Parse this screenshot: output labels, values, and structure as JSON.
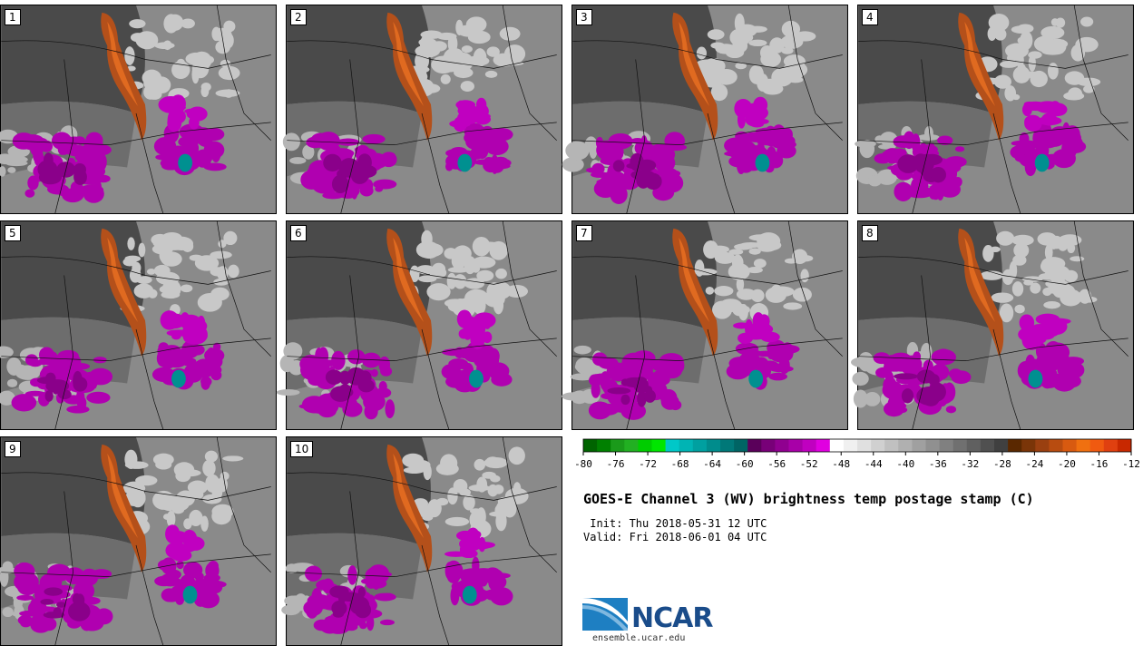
{
  "panels": [
    {
      "label": "1"
    },
    {
      "label": "2"
    },
    {
      "label": "3"
    },
    {
      "label": "4"
    },
    {
      "label": "5"
    },
    {
      "label": "6"
    },
    {
      "label": "7"
    },
    {
      "label": "8"
    },
    {
      "label": "9"
    },
    {
      "label": "10"
    }
  ],
  "colorbar": {
    "ticks": [
      "-80",
      "-76",
      "-72",
      "-68",
      "-64",
      "-60",
      "-56",
      "-52",
      "-48",
      "-44",
      "-40",
      "-36",
      "-32",
      "-28",
      "-24",
      "-20",
      "-16",
      "-12"
    ],
    "colors": [
      "#006400",
      "#008000",
      "#1a9a1a",
      "#22b022",
      "#00cc00",
      "#00e600",
      "#00c8c8",
      "#00b4b4",
      "#00a0a0",
      "#008c8c",
      "#007878",
      "#006464",
      "#5a005a",
      "#780078",
      "#900090",
      "#a800a8",
      "#c000c0",
      "#e000e0",
      "#ffffff",
      "#f0f0f0",
      "#e0e0e0",
      "#d0d0d0",
      "#c0c0c0",
      "#b0b0b0",
      "#a0a0a0",
      "#909090",
      "#808080",
      "#707070",
      "#606060",
      "#505050",
      "#404040",
      "#5a2800",
      "#7a3508",
      "#9a4010",
      "#b84c10",
      "#d85a10",
      "#f07010",
      "#f05a10",
      "#e04010",
      "#c82800"
    ]
  },
  "title": "GOES-E Channel 3 (WV) brightness temp postage stamp (C)",
  "init": " Init: Thu 2018-05-31 12 UTC",
  "valid": "Valid: Fri 2018-06-01 04 UTC",
  "logo": {
    "name": "NCAR",
    "site": "ensemble.ucar.edu"
  }
}
